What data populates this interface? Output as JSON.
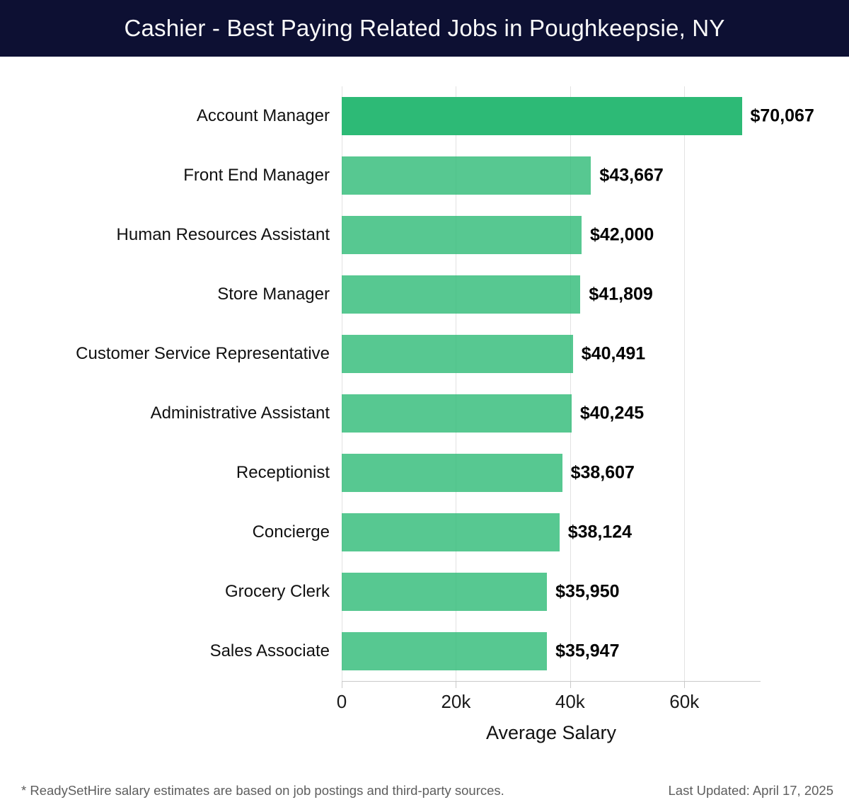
{
  "header": {
    "title": "Cashier - Best Paying Related Jobs in Poughkeepsie, NY"
  },
  "chart_data": {
    "type": "bar",
    "orientation": "horizontal",
    "title": "Cashier - Best Paying Related Jobs in Poughkeepsie, NY",
    "categories": [
      "Account Manager",
      "Front End Manager",
      "Human Resources Assistant",
      "Store Manager",
      "Customer Service Representative",
      "Administrative Assistant",
      "Receptionist",
      "Concierge",
      "Grocery Clerk",
      "Sales Associate"
    ],
    "values": [
      70067,
      43667,
      42000,
      41809,
      40491,
      40245,
      38607,
      38124,
      35950,
      35947
    ],
    "value_labels": [
      "$70,067",
      "$43,667",
      "$42,000",
      "$41,809",
      "$40,491",
      "$40,245",
      "$38,607",
      "$38,124",
      "$35,950",
      "$35,947"
    ],
    "xlabel": "Average Salary",
    "x_ticks": [
      {
        "value": 0,
        "label": "0"
      },
      {
        "value": 20000,
        "label": "20k"
      },
      {
        "value": 40000,
        "label": "40k"
      },
      {
        "value": 60000,
        "label": "60k"
      }
    ],
    "xlim": [
      0,
      73350
    ],
    "grid": "vertical",
    "legend": "none",
    "colors": {
      "bar": "#2dba76",
      "highlight_index": 0,
      "header_background": "#0d1033",
      "gridline": "#e2e2e2"
    }
  },
  "footer": {
    "note": "* ReadySetHire salary estimates are based on job postings and third-party sources.",
    "last_updated": "Last Updated: April 17, 2025"
  }
}
